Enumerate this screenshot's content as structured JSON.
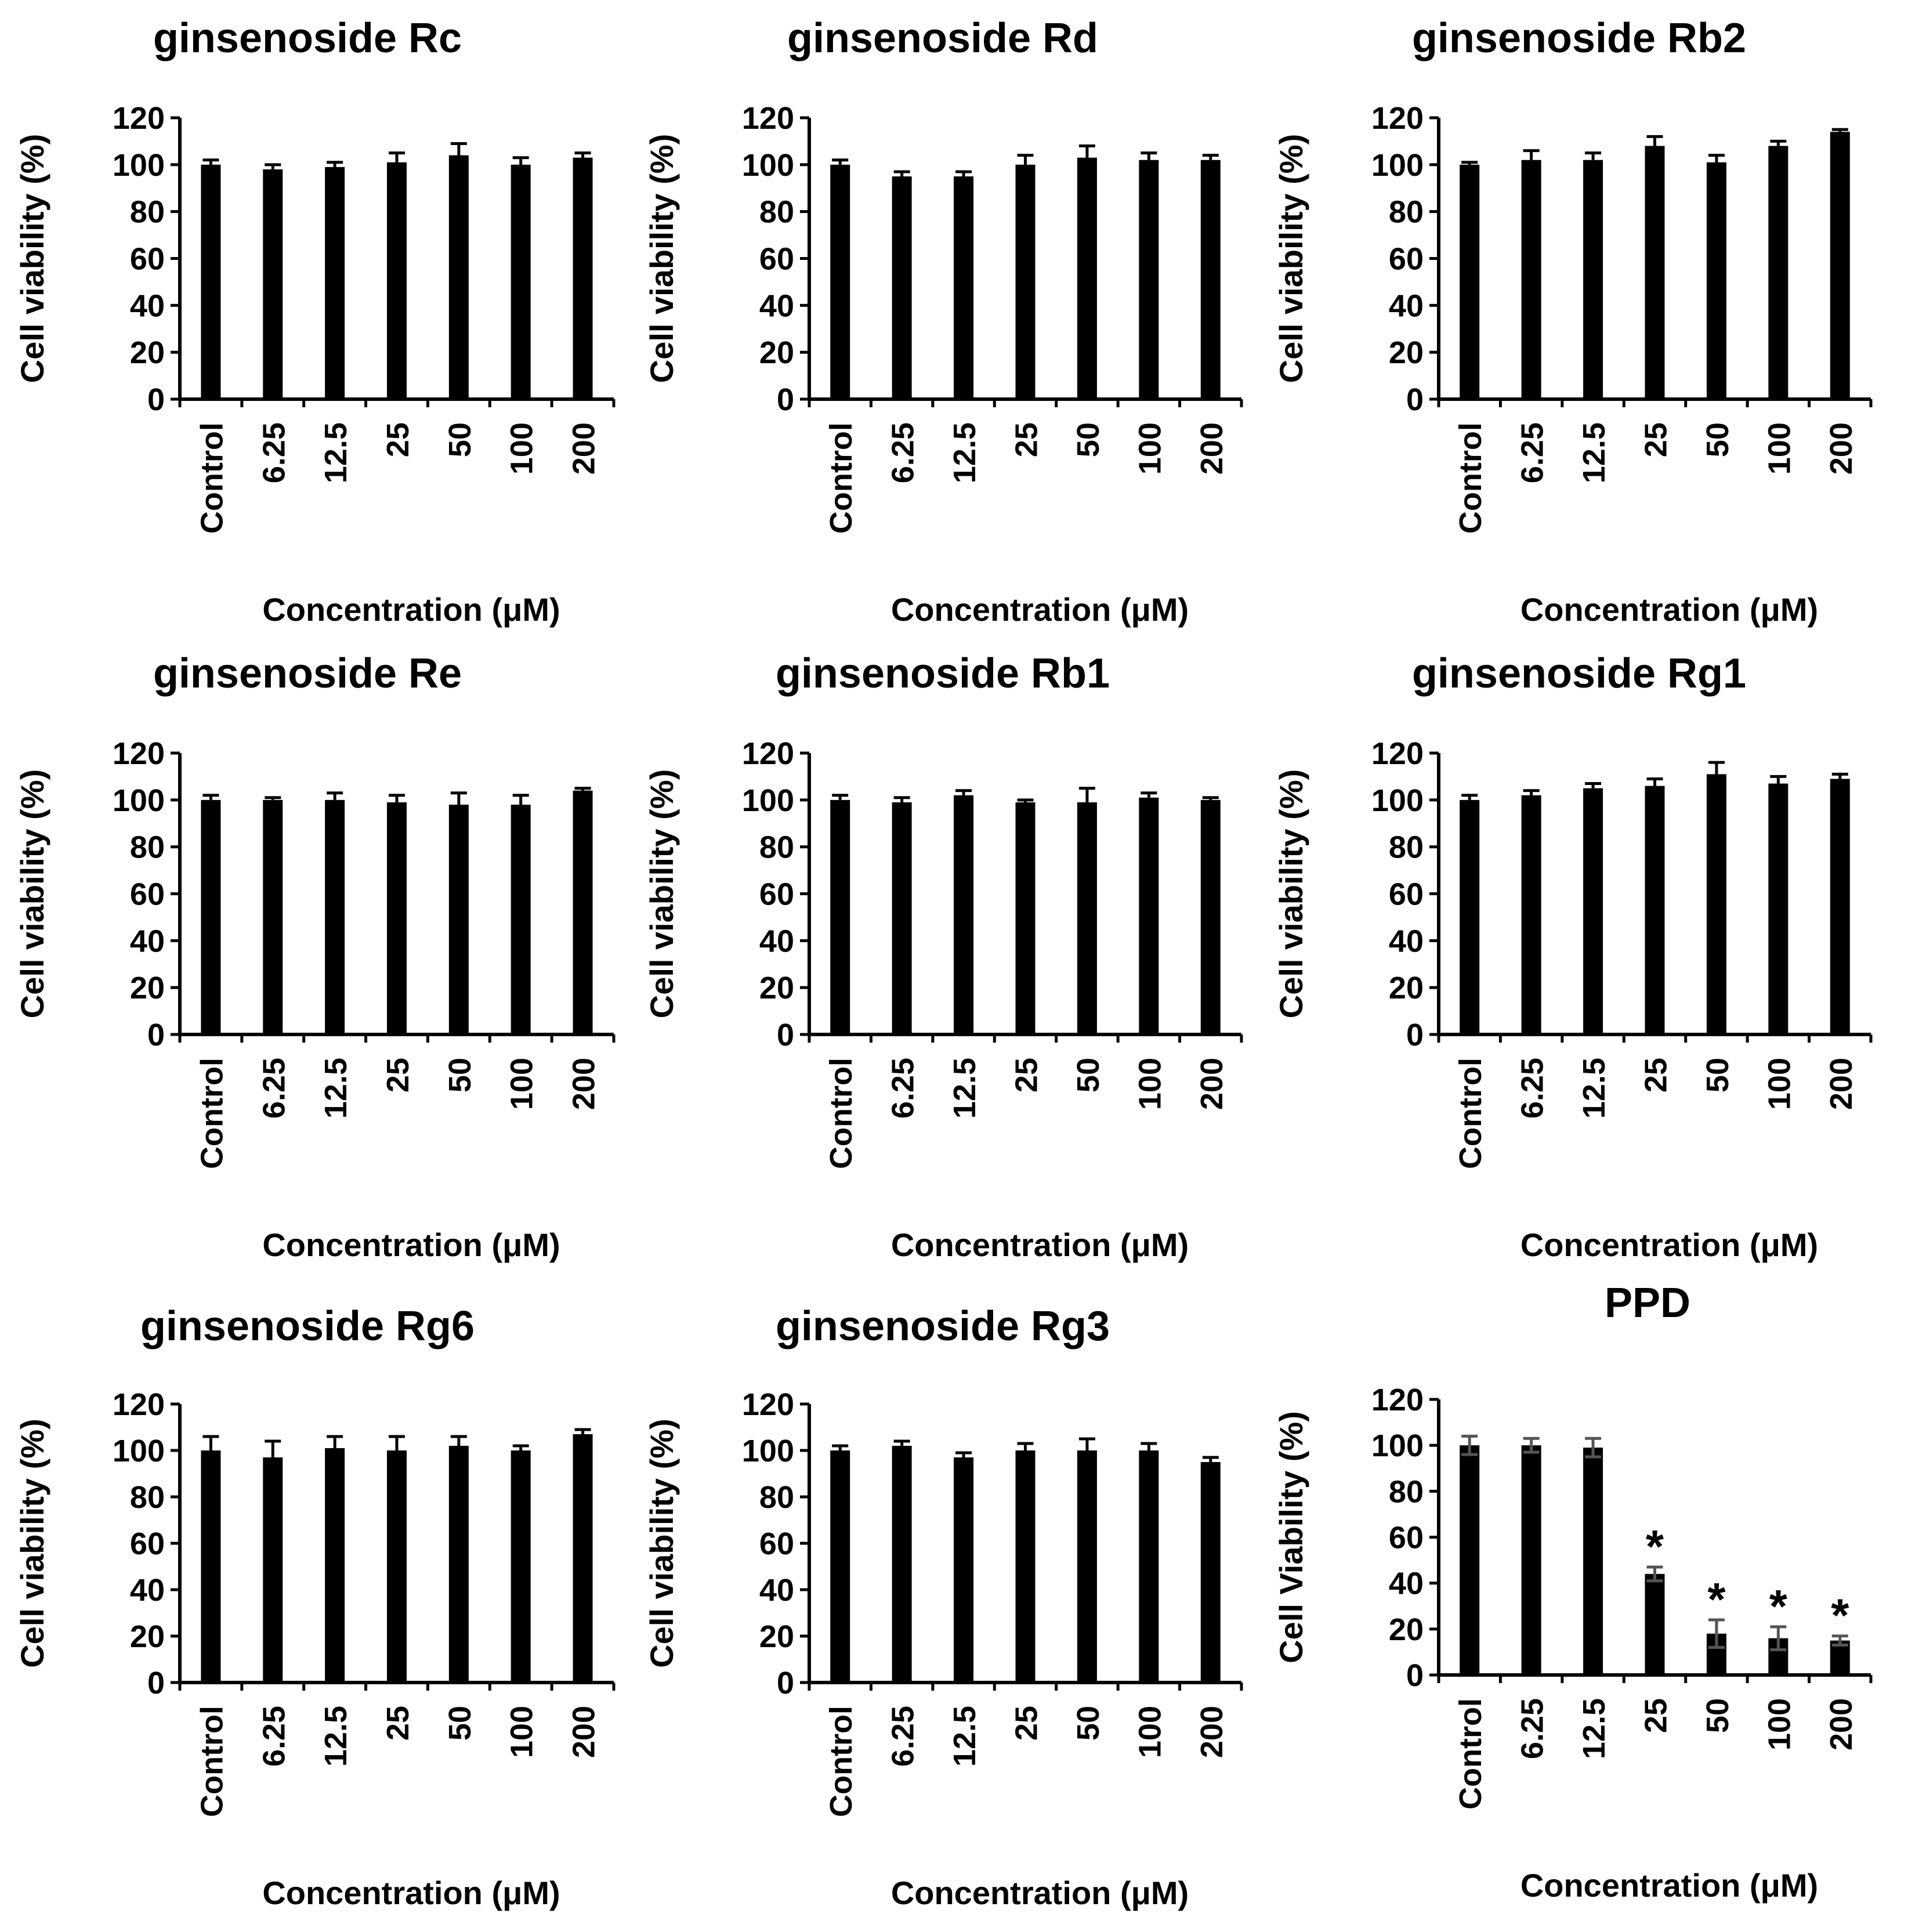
{
  "chart_data": [
    {
      "type": "bar",
      "title": "ginsenoside Rc",
      "categories": [
        "Control",
        "6.25",
        "12.5",
        "25",
        "50",
        "100",
        "200"
      ],
      "values": [
        100,
        98,
        99,
        101,
        104,
        100,
        103
      ],
      "errors": [
        2,
        2,
        2,
        4,
        5,
        3,
        2
      ],
      "significance": [
        "",
        "",
        "",
        "",
        "",
        "",
        ""
      ],
      "xlabel": "Concentration (μM)",
      "ylabel": "Cell viability (%)",
      "ylim": [
        0,
        120
      ],
      "yticks": [
        "0",
        "20",
        "40",
        "60",
        "80",
        "100",
        "120"
      ]
    },
    {
      "type": "bar",
      "title": "ginsenoside Rd",
      "categories": [
        "Control",
        "6.25",
        "12.5",
        "25",
        "50",
        "100",
        "200"
      ],
      "values": [
        100,
        95,
        95,
        100,
        103,
        102,
        102
      ],
      "errors": [
        2,
        2,
        2,
        4,
        5,
        3,
        2
      ],
      "significance": [
        "",
        "",
        "",
        "",
        "",
        "",
        ""
      ],
      "xlabel": "Concentration (μM)",
      "ylabel": "Cell viability (%)",
      "ylim": [
        0,
        120
      ],
      "yticks": [
        "0",
        "20",
        "40",
        "60",
        "80",
        "100",
        "120"
      ]
    },
    {
      "type": "bar",
      "title": "ginsenoside Rb2",
      "categories": [
        "Control",
        "6.25",
        "12.5",
        "25",
        "50",
        "100",
        "200"
      ],
      "values": [
        100,
        102,
        102,
        108,
        101,
        108,
        114
      ],
      "errors": [
        1,
        4,
        3,
        4,
        3,
        2,
        1
      ],
      "significance": [
        "",
        "",
        "",
        "",
        "",
        "",
        ""
      ],
      "xlabel": "Concentration (μM)",
      "ylabel": "Cell viability (%)",
      "ylim": [
        0,
        120
      ],
      "yticks": [
        "0",
        "20",
        "40",
        "60",
        "80",
        "100",
        "120"
      ]
    },
    {
      "type": "bar",
      "title": "ginsenoside Re",
      "categories": [
        "Control",
        "6.25",
        "12.5",
        "25",
        "50",
        "100",
        "200"
      ],
      "values": [
        100,
        100,
        100,
        99,
        98,
        98,
        104
      ],
      "errors": [
        2,
        1,
        3,
        3,
        5,
        4,
        1
      ],
      "significance": [
        "",
        "",
        "",
        "",
        "",
        "",
        ""
      ],
      "xlabel": "Concentration (μM)",
      "ylabel": "Cell viability (%)",
      "ylim": [
        0,
        120
      ],
      "yticks": [
        "0",
        "20",
        "40",
        "60",
        "80",
        "100",
        "120"
      ]
    },
    {
      "type": "bar",
      "title": "ginsenoside Rb1",
      "categories": [
        "Control",
        "6.25",
        "12.5",
        "25",
        "50",
        "100",
        "200"
      ],
      "values": [
        100,
        99,
        102,
        99,
        99,
        101,
        100
      ],
      "errors": [
        2,
        2,
        2,
        1,
        6,
        2,
        1
      ],
      "significance": [
        "",
        "",
        "",
        "",
        "",
        "",
        ""
      ],
      "xlabel": "Concentration (μM)",
      "ylabel": "Cell viability (%)",
      "ylim": [
        0,
        120
      ],
      "yticks": [
        "0",
        "20",
        "40",
        "60",
        "80",
        "100",
        "120"
      ]
    },
    {
      "type": "bar",
      "title": "ginsenoside Rg1",
      "categories": [
        "Control",
        "6.25",
        "12.5",
        "25",
        "50",
        "100",
        "200"
      ],
      "values": [
        100,
        102,
        105,
        106,
        111,
        107,
        109
      ],
      "errors": [
        2,
        2,
        2,
        3,
        5,
        3,
        2
      ],
      "significance": [
        "",
        "",
        "",
        "",
        "",
        "",
        ""
      ],
      "xlabel": "Concentration (μM)",
      "ylabel": "Cell viability (%)",
      "ylim": [
        0,
        120
      ],
      "yticks": [
        "0",
        "20",
        "40",
        "60",
        "80",
        "100",
        "120"
      ]
    },
    {
      "type": "bar",
      "title": "ginsenoside Rg6",
      "categories": [
        "Control",
        "6.25",
        "12.5",
        "25",
        "50",
        "100",
        "200"
      ],
      "values": [
        100,
        97,
        101,
        100,
        102,
        100,
        107
      ],
      "errors": [
        6,
        7,
        5,
        6,
        4,
        2,
        2
      ],
      "significance": [
        "",
        "",
        "",
        "",
        "",
        "",
        ""
      ],
      "xlabel": "Concentration (μM)",
      "ylabel": "Cell viability (%)",
      "ylim": [
        0,
        120
      ],
      "yticks": [
        "0",
        "20",
        "40",
        "60",
        "80",
        "100",
        "120"
      ]
    },
    {
      "type": "bar",
      "title": "ginsenoside Rg3",
      "categories": [
        "Control",
        "6.25",
        "12.5",
        "25",
        "50",
        "100",
        "200"
      ],
      "values": [
        100,
        102,
        97,
        100,
        100,
        100,
        95
      ],
      "errors": [
        2,
        2,
        2,
        3,
        5,
        3,
        2
      ],
      "significance": [
        "",
        "",
        "",
        "",
        "",
        "",
        ""
      ],
      "xlabel": "Concentration (μM)",
      "ylabel": "Cell viability (%)",
      "ylim": [
        0,
        120
      ],
      "yticks": [
        "0",
        "20",
        "40",
        "60",
        "80",
        "100",
        "120"
      ]
    },
    {
      "type": "bar",
      "title": "PPD",
      "categories": [
        "Control",
        "6.25",
        "12.5",
        "25",
        "50",
        "100",
        "200"
      ],
      "values": [
        100,
        100,
        99,
        44,
        18,
        16,
        15
      ],
      "errors": [
        4,
        3,
        4,
        3,
        6,
        5,
        2
      ],
      "significance": [
        "",
        "",
        "",
        "*",
        "*",
        "*",
        "*"
      ],
      "xlabel": "Concentration (μM)",
      "ylabel": "Cell Viability  (%)",
      "ylim": [
        0,
        120
      ],
      "yticks": [
        "0",
        "20",
        "40",
        "60",
        "80",
        "100",
        "120"
      ]
    }
  ]
}
